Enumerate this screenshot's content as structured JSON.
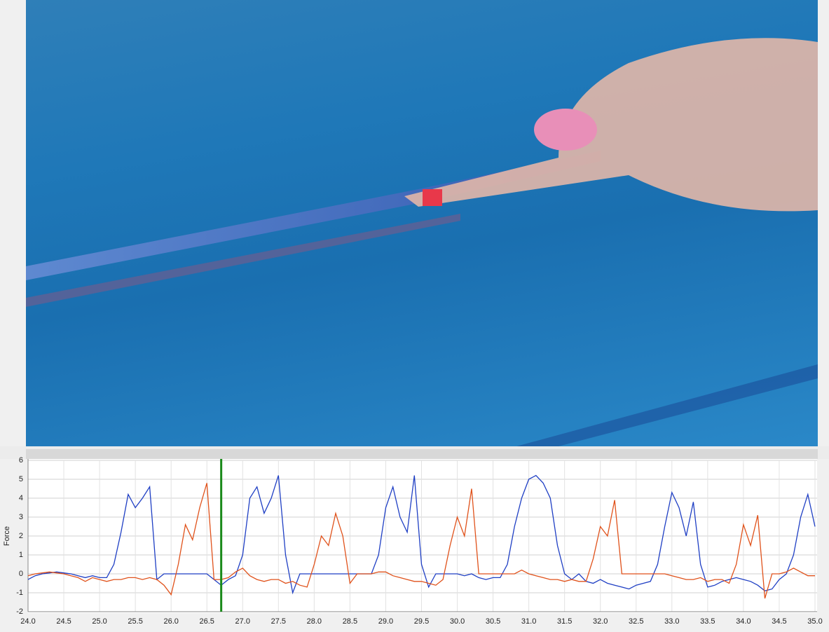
{
  "chart_data": {
    "type": "line",
    "y_label": "Force",
    "x": [
      24.0,
      24.1,
      24.2,
      24.3,
      24.4,
      24.5,
      24.6,
      24.7,
      24.8,
      24.9,
      25.0,
      25.1,
      25.2,
      25.3,
      25.4,
      25.5,
      25.6,
      25.7,
      25.8,
      25.9,
      26.0,
      26.1,
      26.2,
      26.3,
      26.4,
      26.5,
      26.6,
      26.7,
      26.8,
      26.9,
      27.0,
      27.1,
      27.2,
      27.3,
      27.4,
      27.5,
      27.6,
      27.7,
      27.8,
      27.9,
      28.0,
      28.1,
      28.2,
      28.3,
      28.4,
      28.5,
      28.6,
      28.7,
      28.8,
      28.9,
      29.0,
      29.1,
      29.2,
      29.3,
      29.4,
      29.5,
      29.6,
      29.7,
      29.8,
      29.9,
      30.0,
      30.1,
      30.2,
      30.3,
      30.4,
      30.5,
      30.6,
      30.7,
      30.8,
      30.9,
      31.0,
      31.1,
      31.2,
      31.3,
      31.4,
      31.5,
      31.6,
      31.7,
      31.8,
      31.9,
      32.0,
      32.1,
      32.2,
      32.3,
      32.4,
      32.5,
      32.6,
      32.7,
      32.8,
      32.9,
      33.0,
      33.1,
      33.2,
      33.3,
      33.4,
      33.5,
      33.6,
      33.7,
      33.8,
      33.9,
      34.0,
      34.1,
      34.2,
      34.3,
      34.4,
      34.5,
      34.6,
      34.7,
      34.8,
      34.9,
      35.0
    ],
    "series": [
      {
        "color": "#1f3fc4",
        "values": [
          -0.3,
          -0.1,
          0,
          0.05,
          0.1,
          0.05,
          0,
          -0.1,
          -0.2,
          -0.1,
          -0.2,
          -0.2,
          0.5,
          2.2,
          4.2,
          3.5,
          4.0,
          4.6,
          -0.3,
          0,
          0,
          0,
          0,
          0,
          0,
          0,
          -0.3,
          -0.6,
          -0.3,
          -0.1,
          1.0,
          4.0,
          4.6,
          3.2,
          4.0,
          5.2,
          1.0,
          -1.0,
          0,
          0,
          0,
          0,
          0,
          0,
          0,
          0,
          0,
          0,
          0,
          1.0,
          3.5,
          4.6,
          3.0,
          2.2,
          5.2,
          0.5,
          -0.7,
          0,
          0,
          0,
          0,
          -0.1,
          0,
          -0.2,
          -0.3,
          -0.2,
          -0.2,
          0.5,
          2.5,
          4.0,
          5.0,
          5.2,
          4.8,
          4.0,
          1.5,
          0,
          -0.3,
          0,
          -0.4,
          -0.5,
          -0.3,
          -0.5,
          -0.6,
          -0.7,
          -0.8,
          -0.6,
          -0.5,
          -0.4,
          0.5,
          2.5,
          4.3,
          3.5,
          2.0,
          3.8,
          0.5,
          -0.7,
          -0.6,
          -0.4,
          -0.3,
          -0.2,
          -0.3,
          -0.4,
          -0.6,
          -0.9,
          -0.8,
          -0.3,
          0,
          1.0,
          3.0,
          4.2,
          2.5
        ]
      },
      {
        "color": "#e0521b",
        "values": [
          -0.1,
          0,
          0.05,
          0.1,
          0.05,
          0,
          -0.1,
          -0.2,
          -0.4,
          -0.2,
          -0.3,
          -0.4,
          -0.3,
          -0.3,
          -0.2,
          -0.2,
          -0.3,
          -0.2,
          -0.3,
          -0.6,
          -1.1,
          0.5,
          2.6,
          1.8,
          3.5,
          4.8,
          -0.3,
          -0.3,
          -0.2,
          0.1,
          0.3,
          -0.1,
          -0.3,
          -0.4,
          -0.3,
          -0.3,
          -0.5,
          -0.4,
          -0.6,
          -0.7,
          0.5,
          2.0,
          1.5,
          3.2,
          2.0,
          -0.5,
          0,
          0,
          0,
          0.1,
          0.1,
          -0.1,
          -0.2,
          -0.3,
          -0.4,
          -0.4,
          -0.5,
          -0.6,
          -0.3,
          1.5,
          3.0,
          2.0,
          4.5,
          0,
          0,
          0,
          0,
          0,
          0,
          0.2,
          0,
          -0.1,
          -0.2,
          -0.3,
          -0.3,
          -0.4,
          -0.3,
          -0.4,
          -0.4,
          0.8,
          2.5,
          2.0,
          3.9,
          0,
          0,
          0,
          0,
          0,
          0,
          0,
          -0.1,
          -0.2,
          -0.3,
          -0.3,
          -0.2,
          -0.4,
          -0.3,
          -0.3,
          -0.5,
          0.5,
          2.6,
          1.5,
          3.1,
          -1.3,
          0,
          0,
          0.1,
          0.3,
          0.1,
          -0.1,
          -0.1
        ]
      }
    ],
    "cursor": 26.7,
    "cursor_color": "#1a8a1a",
    "xlim": [
      24,
      35
    ],
    "xticks": [
      {
        "value": 24,
        "label": "24.0"
      },
      {
        "value": 24.5,
        "label": "24.5"
      },
      {
        "value": 25,
        "label": "25.0"
      },
      {
        "value": 25.5,
        "label": "25.5"
      },
      {
        "value": 26,
        "label": "26.0"
      },
      {
        "value": 26.5,
        "label": "26.5"
      },
      {
        "value": 27,
        "label": "27.0"
      },
      {
        "value": 27.5,
        "label": "27.5"
      },
      {
        "value": 28,
        "label": "28.0"
      },
      {
        "value": 28.5,
        "label": "28.5"
      },
      {
        "value": 29,
        "label": "29.0"
      },
      {
        "value": 29.5,
        "label": "29.5"
      },
      {
        "value": 30,
        "label": "30.0"
      },
      {
        "value": 30.5,
        "label": "30.5"
      },
      {
        "value": 31,
        "label": "31.0"
      },
      {
        "value": 31.5,
        "label": "31.5"
      },
      {
        "value": 32,
        "label": "32.0"
      },
      {
        "value": 32.5,
        "label": "32.5"
      },
      {
        "value": 33,
        "label": "33.0"
      },
      {
        "value": 33.5,
        "label": "33.5"
      },
      {
        "value": 34,
        "label": "34.0"
      },
      {
        "value": 34.5,
        "label": "34.5"
      },
      {
        "value": 35,
        "label": "35.0"
      }
    ],
    "ylim": [
      -2,
      6
    ],
    "yticks": [
      -2,
      -1,
      0,
      1,
      2,
      3,
      4,
      5,
      6
    ],
    "grid": true
  }
}
